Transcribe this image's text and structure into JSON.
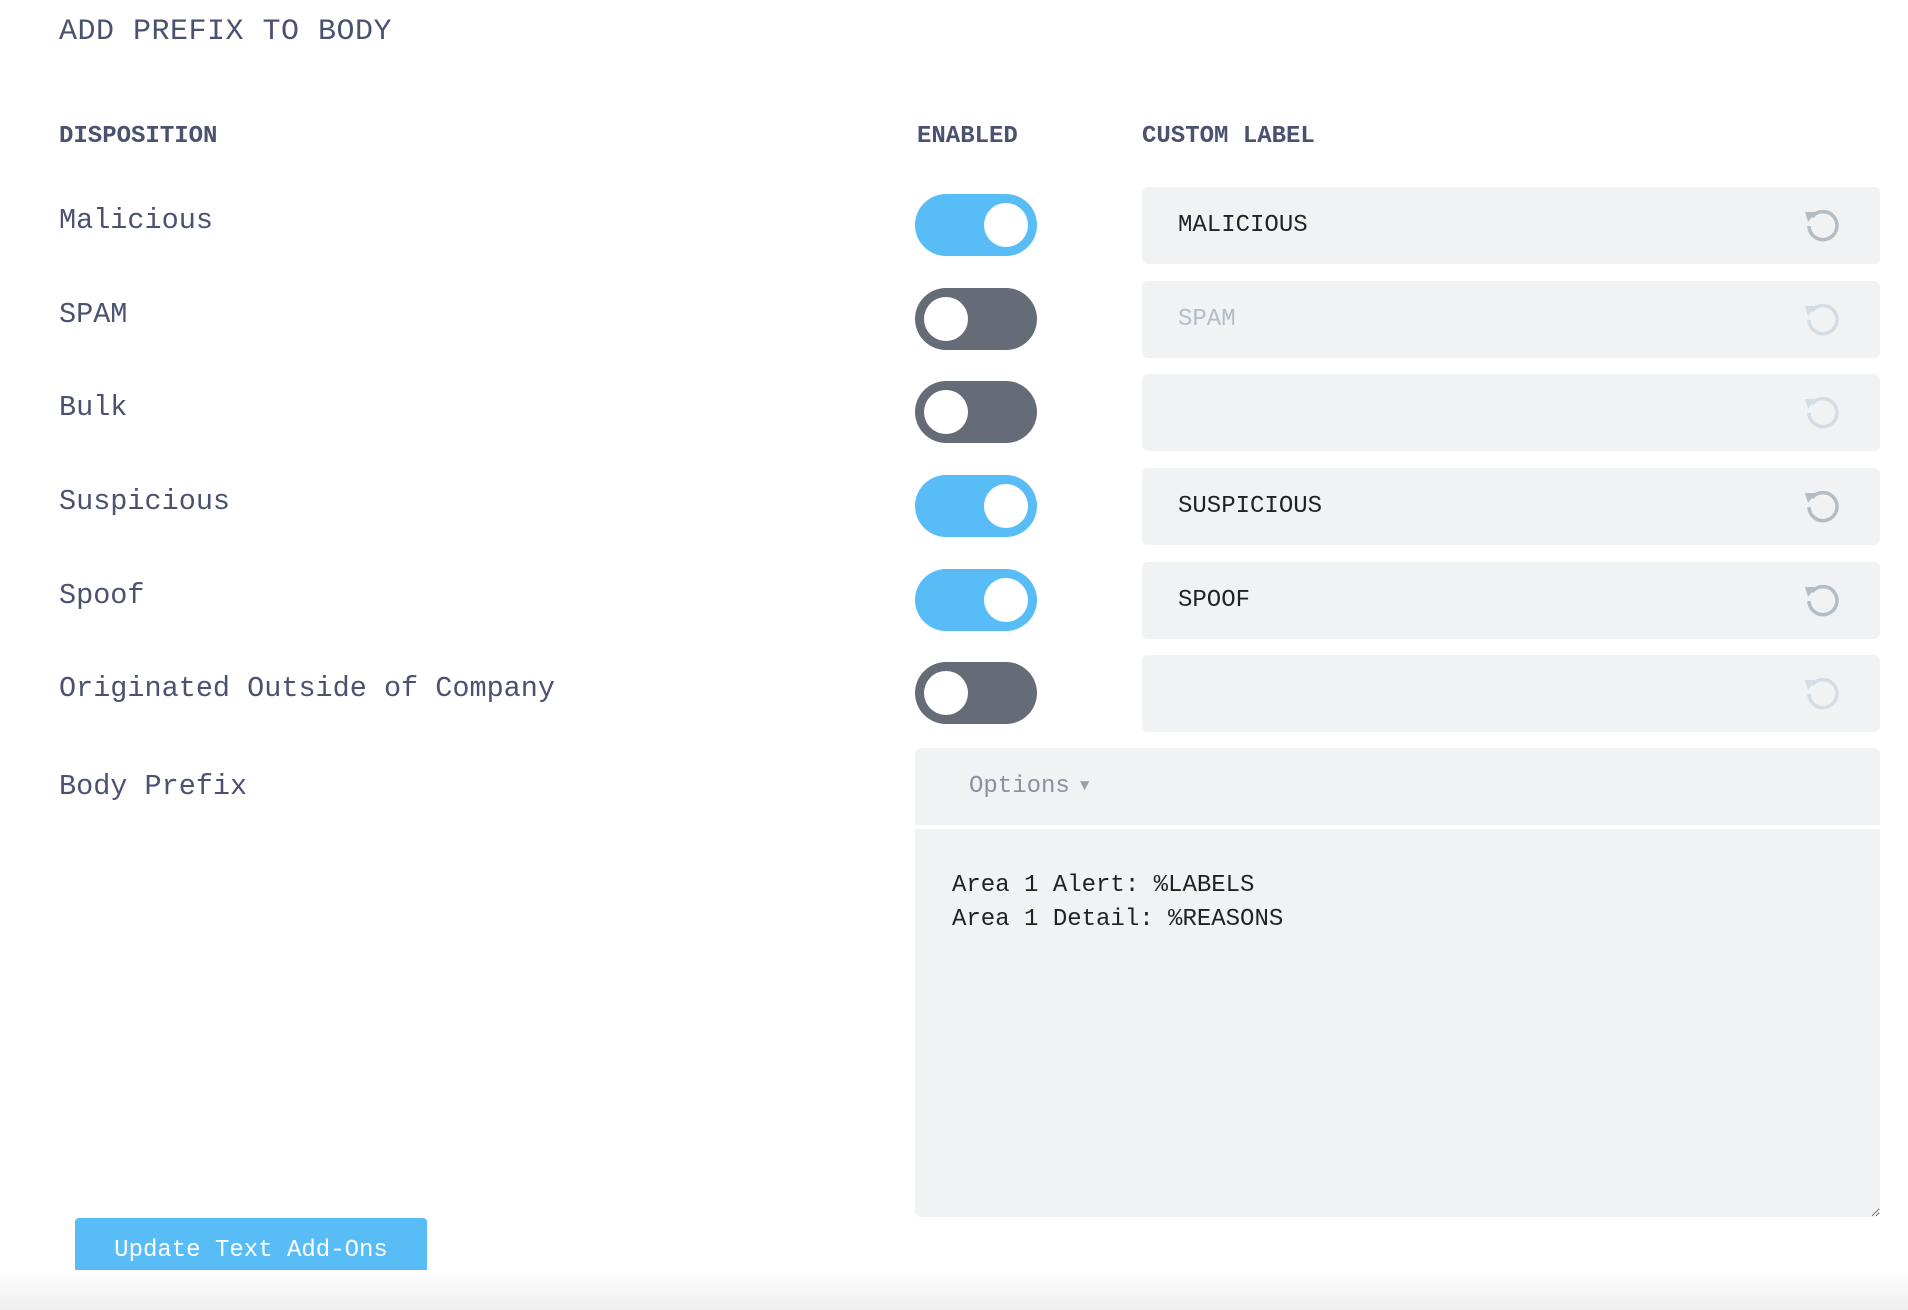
{
  "title": "ADD PREFIX TO BODY",
  "headers": {
    "disposition": "DISPOSITION",
    "enabled": "ENABLED",
    "custom_label": "CUSTOM LABEL"
  },
  "colors": {
    "accent": "#58bdf7",
    "toggle_off": "#666b78",
    "text": "#4a5270",
    "input_bg": "#f1f2f4"
  },
  "rows": [
    {
      "label": "Malicious",
      "enabled": true,
      "value": "MALICIOUS",
      "placeholder": ""
    },
    {
      "label": "SPAM",
      "enabled": false,
      "value": "",
      "placeholder": "SPAM"
    },
    {
      "label": "Bulk",
      "enabled": false,
      "value": "",
      "placeholder": ""
    },
    {
      "label": "Suspicious",
      "enabled": true,
      "value": "SUSPICIOUS",
      "placeholder": ""
    },
    {
      "label": "Spoof",
      "enabled": true,
      "value": "SPOOF",
      "placeholder": ""
    },
    {
      "label": "Originated Outside of Company",
      "enabled": false,
      "value": "",
      "placeholder": ""
    }
  ],
  "reset_icon": "rotate-ccw-icon",
  "body_prefix": {
    "label": "Body Prefix",
    "options_label": "Options",
    "options_icon": "caret-down-icon",
    "text": "Area 1 Alert: %LABELS\nArea 1 Detail: %REASONS"
  },
  "submit_label": "Update Text Add-Ons"
}
